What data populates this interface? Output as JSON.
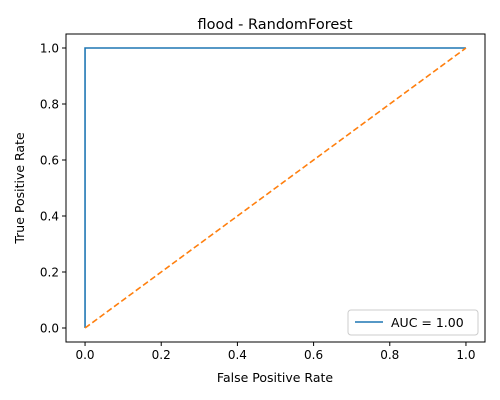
{
  "chart_data": {
    "type": "line",
    "title": "flood - RandomForest",
    "xlabel": "False Positive Rate",
    "ylabel": "True Positive Rate",
    "xlim": [
      -0.05,
      1.05
    ],
    "ylim": [
      -0.05,
      1.05
    ],
    "xticks": [
      0.0,
      0.2,
      0.4,
      0.6,
      0.8,
      1.0
    ],
    "yticks": [
      0.0,
      0.2,
      0.4,
      0.6,
      0.8,
      1.0
    ],
    "xtick_labels": [
      "0.0",
      "0.2",
      "0.4",
      "0.6",
      "0.8",
      "1.0"
    ],
    "ytick_labels": [
      "0.0",
      "0.2",
      "0.4",
      "0.6",
      "0.8",
      "1.0"
    ],
    "grid": false,
    "legend_position": "lower-right",
    "series": [
      {
        "name": "AUC = 1.00",
        "style": "solid",
        "color": "#1f77b4",
        "x": [
          0.0,
          0.0,
          1.0
        ],
        "y": [
          0.0,
          1.0,
          1.0
        ]
      },
      {
        "style": "dashed",
        "color": "#ff7f0e",
        "x": [
          0.0,
          1.0
        ],
        "y": [
          0.0,
          1.0
        ]
      }
    ]
  }
}
